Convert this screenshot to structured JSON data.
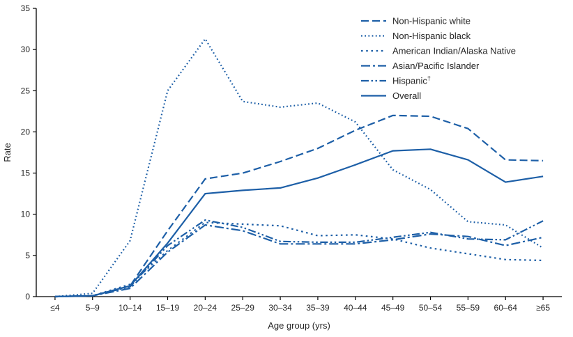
{
  "chart_data": {
    "type": "line",
    "title": "",
    "xlabel": "Age group (yrs)",
    "ylabel": "Rate",
    "ylim": [
      0,
      35
    ],
    "yticks": [
      0,
      5,
      10,
      15,
      20,
      25,
      30,
      35
    ],
    "categories": [
      "≤4",
      "5–9",
      "10–14",
      "15–19",
      "20–24",
      "25–29",
      "30–34",
      "35–39",
      "40–44",
      "45–49",
      "50–54",
      "55–59",
      "60–64",
      "≥65"
    ],
    "grid": "off",
    "legend_position": "top-right",
    "line_color": "#1d5fa7",
    "text_color": "#262626",
    "axis_color": "#000000",
    "series": [
      {
        "name": "Non-Hispanic white",
        "style": "dashed",
        "values": [
          0,
          0.1,
          1.3,
          8.0,
          14.3,
          15.0,
          16.4,
          18.0,
          20.2,
          22.0,
          21.9,
          20.4,
          16.6,
          16.5
        ]
      },
      {
        "name": "Non-Hispanic black",
        "style": "dotted-dense",
        "values": [
          0,
          0.4,
          6.8,
          25.0,
          31.3,
          23.7,
          23.0,
          23.5,
          21.2,
          15.4,
          13.0,
          9.1,
          8.7,
          5.9
        ]
      },
      {
        "name": "American Indian/Alaska Native",
        "style": "dotted",
        "values": [
          0,
          0.1,
          1.5,
          5.6,
          9.0,
          8.8,
          8.6,
          7.4,
          7.5,
          7.0,
          5.9,
          5.2,
          4.5,
          4.4
        ]
      },
      {
        "name": "Asian/Pacific Islander",
        "style": "dash-dot",
        "values": [
          0,
          0.1,
          1.0,
          5.4,
          8.7,
          8.0,
          6.4,
          6.4,
          6.4,
          6.9,
          7.6,
          7.3,
          6.2,
          7.2
        ]
      },
      {
        "name": "Hispanic†",
        "style": "dash-dot-dot",
        "values": [
          0,
          0.1,
          1.2,
          6.2,
          9.3,
          8.4,
          6.7,
          6.6,
          6.6,
          7.2,
          7.8,
          7.0,
          6.9,
          9.2
        ]
      },
      {
        "name": "Overall",
        "style": "solid",
        "values": [
          0,
          0.1,
          1.3,
          6.5,
          12.5,
          12.9,
          13.2,
          14.4,
          16.0,
          17.7,
          17.9,
          16.6,
          13.9,
          14.6
        ]
      }
    ]
  }
}
